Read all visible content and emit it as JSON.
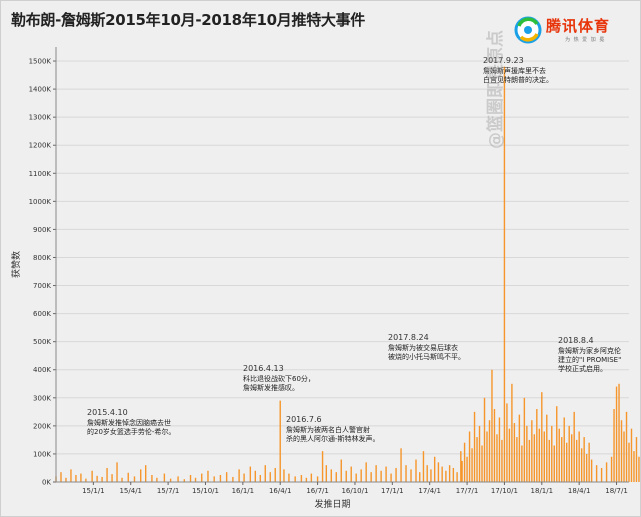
{
  "page": {
    "title": "勒布朗-詹姆斯2015年10月-2018年10月推特大事件",
    "logo_name": "腾讯体育",
    "logo_tagline": "为 热 爱 加 冕",
    "watermark": "@篮圈即是原点"
  },
  "chart_data": {
    "type": "bar",
    "title": "勒布朗-詹姆斯2015年10月-2018年10月推特大事件",
    "xlabel": "发推日期",
    "ylabel": "获赞数",
    "ylim": [
      0,
      1550000
    ],
    "y_ticks": [
      {
        "value": 0,
        "label": "0K"
      },
      {
        "value": 100000,
        "label": "100K"
      },
      {
        "value": 200000,
        "label": "200K"
      },
      {
        "value": 300000,
        "label": "300K"
      },
      {
        "value": 400000,
        "label": "400K"
      },
      {
        "value": 500000,
        "label": "500K"
      },
      {
        "value": 600000,
        "label": "600K"
      },
      {
        "value": 700000,
        "label": "700K"
      },
      {
        "value": 800000,
        "label": "800K"
      },
      {
        "value": 900000,
        "label": "900K"
      },
      {
        "value": 1000000,
        "label": "1000K"
      },
      {
        "value": 1100000,
        "label": "1100K"
      },
      {
        "value": 1200000,
        "label": "1200K"
      },
      {
        "value": 1300000,
        "label": "1300K"
      },
      {
        "value": 1400000,
        "label": "1400K"
      },
      {
        "value": 1500000,
        "label": "1500K"
      }
    ],
    "x_range_months": [
      0,
      46
    ],
    "x_ticks": [
      {
        "month": 3,
        "label": "15/1/1"
      },
      {
        "month": 6,
        "label": "15/4/1"
      },
      {
        "month": 9,
        "label": "15/7/1"
      },
      {
        "month": 12,
        "label": "15/10/1"
      },
      {
        "month": 15,
        "label": "16/1/1"
      },
      {
        "month": 18,
        "label": "16/4/1"
      },
      {
        "month": 21,
        "label": "16/7/1"
      },
      {
        "month": 24,
        "label": "16/10/1"
      },
      {
        "month": 27,
        "label": "17/1/1"
      },
      {
        "month": 30,
        "label": "17/4/1"
      },
      {
        "month": 33,
        "label": "17/7/1"
      },
      {
        "month": 36,
        "label": "17/10/1"
      },
      {
        "month": 39,
        "label": "18/1/1"
      },
      {
        "month": 42,
        "label": "18/4/1"
      },
      {
        "month": 45,
        "label": "18/7/1"
      }
    ],
    "bar_color": "#f5952a",
    "series": [
      {
        "name": "获赞数",
        "points": [
          [
            0.0,
            20000
          ],
          [
            0.4,
            35000
          ],
          [
            0.8,
            15000
          ],
          [
            1.2,
            45000
          ],
          [
            1.6,
            25000
          ],
          [
            2.0,
            30000
          ],
          [
            2.4,
            12000
          ],
          [
            2.9,
            40000
          ],
          [
            3.3,
            22000
          ],
          [
            3.7,
            18000
          ],
          [
            4.1,
            50000
          ],
          [
            4.5,
            28000
          ],
          [
            4.9,
            70000
          ],
          [
            5.3,
            15000
          ],
          [
            5.8,
            33000
          ],
          [
            6.3,
            20000
          ],
          [
            6.8,
            45000
          ],
          [
            7.2,
            60000
          ],
          [
            7.7,
            25000
          ],
          [
            8.1,
            15000
          ],
          [
            8.7,
            30000
          ],
          [
            9.2,
            12000
          ],
          [
            9.8,
            20000
          ],
          [
            10.3,
            10000
          ],
          [
            10.8,
            25000
          ],
          [
            11.2,
            15000
          ],
          [
            11.7,
            30000
          ],
          [
            12.2,
            40000
          ],
          [
            12.7,
            20000
          ],
          [
            13.2,
            25000
          ],
          [
            13.7,
            35000
          ],
          [
            14.2,
            18000
          ],
          [
            14.7,
            45000
          ],
          [
            15.1,
            30000
          ],
          [
            15.6,
            55000
          ],
          [
            16.0,
            40000
          ],
          [
            16.4,
            25000
          ],
          [
            16.8,
            60000
          ],
          [
            17.2,
            35000
          ],
          [
            17.6,
            50000
          ],
          [
            18.0,
            290000
          ],
          [
            18.3,
            45000
          ],
          [
            18.7,
            30000
          ],
          [
            19.2,
            20000
          ],
          [
            19.7,
            25000
          ],
          [
            20.1,
            15000
          ],
          [
            20.5,
            30000
          ],
          [
            21.0,
            20000
          ],
          [
            21.4,
            110000
          ],
          [
            21.7,
            60000
          ],
          [
            22.1,
            45000
          ],
          [
            22.5,
            35000
          ],
          [
            22.9,
            80000
          ],
          [
            23.3,
            40000
          ],
          [
            23.7,
            55000
          ],
          [
            24.1,
            30000
          ],
          [
            24.5,
            45000
          ],
          [
            24.9,
            70000
          ],
          [
            25.3,
            35000
          ],
          [
            25.7,
            60000
          ],
          [
            26.1,
            40000
          ],
          [
            26.5,
            55000
          ],
          [
            26.9,
            30000
          ],
          [
            27.3,
            50000
          ],
          [
            27.7,
            120000
          ],
          [
            28.1,
            60000
          ],
          [
            28.5,
            45000
          ],
          [
            28.9,
            80000
          ],
          [
            29.2,
            35000
          ],
          [
            29.5,
            110000
          ],
          [
            29.8,
            60000
          ],
          [
            30.1,
            45000
          ],
          [
            30.4,
            90000
          ],
          [
            30.7,
            70000
          ],
          [
            31.0,
            55000
          ],
          [
            31.3,
            40000
          ],
          [
            31.6,
            60000
          ],
          [
            31.9,
            50000
          ],
          [
            32.2,
            35000
          ],
          [
            32.5,
            110000
          ],
          [
            32.6,
            75000
          ],
          [
            32.8,
            140000
          ],
          [
            33.0,
            90000
          ],
          [
            33.2,
            180000
          ],
          [
            33.4,
            120000
          ],
          [
            33.6,
            250000
          ],
          [
            33.8,
            160000
          ],
          [
            34.0,
            200000
          ],
          [
            34.2,
            130000
          ],
          [
            34.4,
            300000
          ],
          [
            34.6,
            180000
          ],
          [
            34.8,
            220000
          ],
          [
            35.0,
            400000
          ],
          [
            35.2,
            260000
          ],
          [
            35.4,
            170000
          ],
          [
            35.6,
            230000
          ],
          [
            35.8,
            150000
          ],
          [
            36.0,
            1480000
          ],
          [
            36.2,
            280000
          ],
          [
            36.4,
            190000
          ],
          [
            36.6,
            350000
          ],
          [
            36.8,
            210000
          ],
          [
            37.0,
            160000
          ],
          [
            37.2,
            240000
          ],
          [
            37.4,
            130000
          ],
          [
            37.6,
            300000
          ],
          [
            37.8,
            200000
          ],
          [
            38.0,
            150000
          ],
          [
            38.2,
            220000
          ],
          [
            38.4,
            170000
          ],
          [
            38.6,
            260000
          ],
          [
            38.8,
            190000
          ],
          [
            39.0,
            320000
          ],
          [
            39.2,
            180000
          ],
          [
            39.4,
            240000
          ],
          [
            39.6,
            150000
          ],
          [
            39.8,
            200000
          ],
          [
            40.0,
            130000
          ],
          [
            40.2,
            270000
          ],
          [
            40.4,
            190000
          ],
          [
            40.6,
            160000
          ],
          [
            40.8,
            230000
          ],
          [
            41.0,
            140000
          ],
          [
            41.2,
            200000
          ],
          [
            41.4,
            170000
          ],
          [
            41.6,
            250000
          ],
          [
            41.8,
            150000
          ],
          [
            42.0,
            180000
          ],
          [
            42.2,
            120000
          ],
          [
            42.4,
            160000
          ],
          [
            42.6,
            100000
          ],
          [
            42.8,
            140000
          ],
          [
            43.0,
            80000
          ],
          [
            43.4,
            60000
          ],
          [
            43.8,
            50000
          ],
          [
            44.2,
            70000
          ],
          [
            44.6,
            90000
          ],
          [
            44.8,
            260000
          ],
          [
            45.0,
            340000
          ],
          [
            45.2,
            350000
          ],
          [
            45.4,
            220000
          ],
          [
            45.6,
            180000
          ],
          [
            45.8,
            250000
          ],
          [
            46.0,
            140000
          ],
          [
            46.2,
            190000
          ],
          [
            46.4,
            110000
          ],
          [
            46.6,
            160000
          ],
          [
            46.8,
            90000
          ]
        ]
      }
    ],
    "annotations": [
      {
        "date": "2015.4.10",
        "text": [
          "詹姆斯发推悼念因脑癌去世",
          "的20岁女篮选手劳伦-希尔。"
        ]
      },
      {
        "date": "2016.4.13",
        "text": [
          "科比退役战砍下60分，",
          "詹姆斯发推感叹。"
        ]
      },
      {
        "date": "2016.7.6",
        "text": [
          "詹姆斯为被两名白人警官射",
          "杀的黑人阿尔通-斯特林发声。"
        ]
      },
      {
        "date": "2017.8.24",
        "text": [
          "詹姆斯为被交易后球衣",
          "被烧的小托马斯鸣不平。"
        ]
      },
      {
        "date": "2017.9.23",
        "text": [
          "詹姆斯声援库里不去",
          "白宫见特朗普的决定。"
        ]
      },
      {
        "date": "2018.8.4",
        "text": [
          "詹姆斯为家乡阿克伦",
          "建立的\"I PROMISE\"",
          "学校正式启用。"
        ]
      }
    ]
  }
}
